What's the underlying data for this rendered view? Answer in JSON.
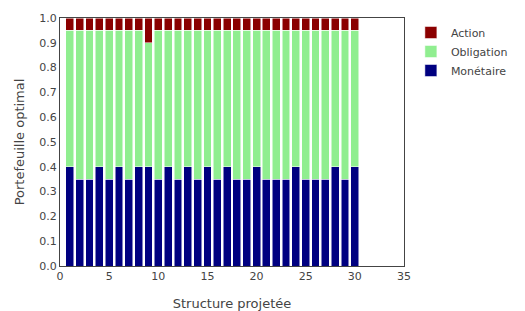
{
  "chart_data": {
    "type": "bar",
    "stacked": true,
    "xlabel": "Structure projetée",
    "ylabel": "Portefeuille optimal",
    "x": [
      1,
      2,
      3,
      4,
      5,
      6,
      7,
      8,
      9,
      10,
      11,
      12,
      13,
      14,
      15,
      16,
      17,
      18,
      19,
      20,
      21,
      22,
      23,
      24,
      25,
      26,
      27,
      28,
      29,
      30
    ],
    "series": [
      {
        "name": "Monétaire",
        "color": "#000080",
        "values": [
          0.4,
          0.35,
          0.35,
          0.4,
          0.35,
          0.4,
          0.35,
          0.4,
          0.4,
          0.35,
          0.4,
          0.35,
          0.4,
          0.35,
          0.4,
          0.35,
          0.4,
          0.35,
          0.35,
          0.4,
          0.35,
          0.35,
          0.35,
          0.4,
          0.35,
          0.35,
          0.35,
          0.4,
          0.35,
          0.4
        ]
      },
      {
        "name": "Obligation",
        "color": "#90EE90",
        "values": [
          0.55,
          0.6,
          0.6,
          0.55,
          0.6,
          0.55,
          0.6,
          0.55,
          0.5,
          0.6,
          0.55,
          0.6,
          0.55,
          0.6,
          0.55,
          0.6,
          0.55,
          0.6,
          0.6,
          0.55,
          0.6,
          0.6,
          0.6,
          0.55,
          0.6,
          0.6,
          0.6,
          0.55,
          0.6,
          0.55
        ]
      },
      {
        "name": "Action",
        "color": "#8B0000",
        "values": [
          0.05,
          0.05,
          0.05,
          0.05,
          0.05,
          0.05,
          0.05,
          0.05,
          0.1,
          0.05,
          0.05,
          0.05,
          0.05,
          0.05,
          0.05,
          0.05,
          0.05,
          0.05,
          0.05,
          0.05,
          0.05,
          0.05,
          0.05,
          0.05,
          0.05,
          0.05,
          0.05,
          0.05,
          0.05,
          0.05
        ]
      }
    ],
    "xlim": [
      0,
      35
    ],
    "xticks": [
      0,
      5,
      10,
      15,
      20,
      25,
      30,
      35
    ],
    "ylim": [
      0,
      1
    ],
    "yticks": [
      {
        "value": 0,
        "label": "0.0"
      },
      0.1,
      0.2,
      0.3,
      0.4,
      0.5,
      0.6,
      0.7,
      0.8,
      0.9,
      {
        "value": 1,
        "label": "1.0"
      }
    ],
    "grid": false,
    "legend": "upper right"
  }
}
